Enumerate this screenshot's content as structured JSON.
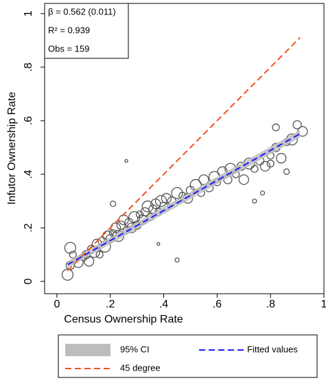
{
  "chart_data": {
    "type": "scatter",
    "x_label": "Census Ownership Rate",
    "y_label": "Infutor Ownership Rate",
    "annotations": [
      "β = 0.562 (0.011)",
      "R² = 0.939",
      "Obs = 159"
    ],
    "xlim": [
      -0.046,
      1.0
    ],
    "ylim": [
      -0.046,
      1.038
    ],
    "xticks": [
      0,
      {
        "value": 0.2,
        "label": ".2"
      },
      {
        "value": 0.4,
        "label": ".4"
      },
      {
        "value": 0.6,
        "label": ".6"
      },
      {
        "value": 0.8,
        "label": ".8"
      },
      1
    ],
    "yticks": [
      0,
      {
        "value": 0.2,
        "label": ".2"
      },
      {
        "value": 0.4,
        "label": ".4"
      },
      {
        "value": 0.6,
        "label": ".6"
      },
      {
        "value": 0.8,
        "label": ".8"
      },
      1
    ],
    "scatter": {
      "color": "#555555",
      "x": [
        0.04,
        0.05,
        0.06,
        0.08,
        0.1,
        0.11,
        0.12,
        0.13,
        0.14,
        0.15,
        0.16,
        0.17,
        0.18,
        0.19,
        0.2,
        0.21,
        0.22,
        0.23,
        0.24,
        0.25,
        0.26,
        0.27,
        0.28,
        0.29,
        0.3,
        0.31,
        0.32,
        0.33,
        0.34,
        0.35,
        0.36,
        0.37,
        0.38,
        0.39,
        0.4,
        0.41,
        0.43,
        0.45,
        0.47,
        0.49,
        0.5,
        0.52,
        0.54,
        0.55,
        0.57,
        0.59,
        0.6,
        0.62,
        0.64,
        0.65,
        0.67,
        0.69,
        0.7,
        0.72,
        0.74,
        0.76,
        0.78,
        0.8,
        0.82,
        0.84,
        0.86,
        0.88,
        0.9,
        0.92,
        0.26,
        0.38,
        0.45,
        0.77,
        0.74,
        0.21,
        0.05,
        0.82,
        0.86,
        0.8
      ],
      "values": [
        0.025,
        0.06,
        0.1,
        0.07,
        0.09,
        0.1,
        0.075,
        0.12,
        0.11,
        0.14,
        0.1,
        0.15,
        0.13,
        0.17,
        0.16,
        0.18,
        0.2,
        0.17,
        0.21,
        0.23,
        0.19,
        0.22,
        0.2,
        0.24,
        0.21,
        0.25,
        0.23,
        0.26,
        0.28,
        0.24,
        0.27,
        0.29,
        0.26,
        0.3,
        0.28,
        0.31,
        0.3,
        0.33,
        0.32,
        0.31,
        0.34,
        0.36,
        0.33,
        0.38,
        0.35,
        0.39,
        0.37,
        0.41,
        0.38,
        0.42,
        0.4,
        0.43,
        0.38,
        0.44,
        0.42,
        0.45,
        0.43,
        0.47,
        0.5,
        0.46,
        0.52,
        0.53,
        0.585,
        0.56,
        0.45,
        0.14,
        0.08,
        0.33,
        0.3,
        0.29,
        0.125,
        0.575,
        0.41,
        0.44
      ],
      "sizes": [
        8,
        6,
        5,
        7,
        5,
        6,
        7,
        6,
        8,
        7,
        5,
        6,
        8,
        7,
        6,
        5,
        7,
        8,
        6,
        7,
        5,
        6,
        7,
        8,
        6,
        5,
        7,
        6,
        8,
        5,
        6,
        7,
        5,
        8,
        6,
        7,
        6,
        8,
        5,
        7,
        6,
        8,
        5,
        7,
        6,
        8,
        5,
        7,
        6,
        8,
        5,
        6,
        7,
        8,
        5,
        6,
        7,
        5,
        6,
        7,
        5,
        8,
        6,
        7,
        2,
        2,
        3,
        3,
        3,
        4,
        8,
        5,
        4,
        5
      ]
    },
    "series": [
      {
        "name": "95% CI",
        "kind": "band",
        "color": "#bdbdbd",
        "x": [
          0.04,
          0.91
        ],
        "lower": [
          0.05,
          0.537
        ],
        "upper": [
          0.075,
          0.565
        ]
      },
      {
        "name": "Fitted values",
        "kind": "line",
        "color": "#1a1aff",
        "x": [
          0.04,
          0.91
        ],
        "values": [
          0.0625,
          0.551
        ]
      },
      {
        "name": "45 degree",
        "kind": "line",
        "color": "#f4511e",
        "x": [
          0.04,
          0.91
        ],
        "values": [
          0.04,
          0.91
        ]
      }
    ]
  }
}
